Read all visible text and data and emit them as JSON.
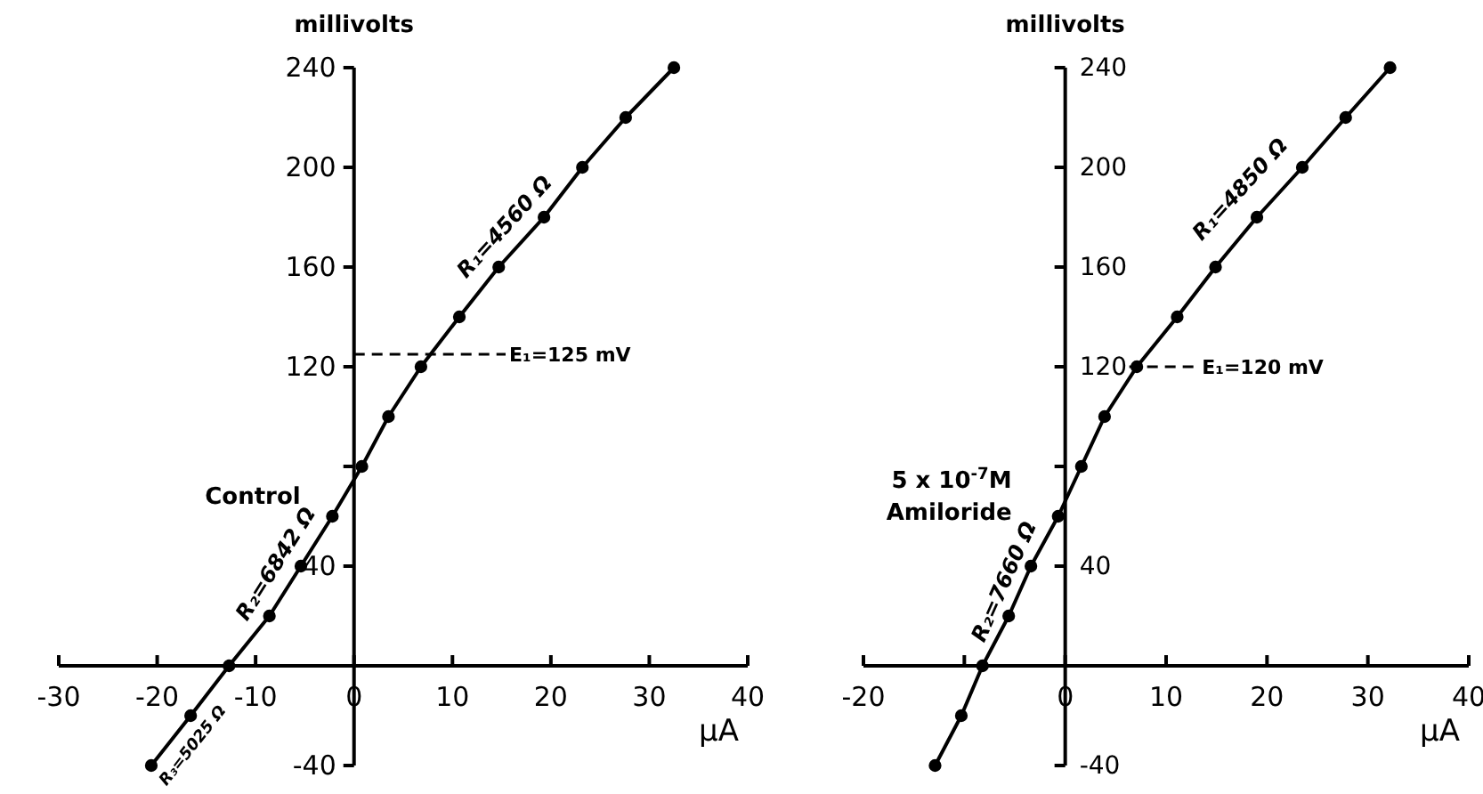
{
  "chart_data": [
    {
      "type": "line",
      "xlabel": "μA",
      "ylabel": "millivolts",
      "xlim": [
        -30,
        40
      ],
      "xticks": [
        -30,
        -20,
        -10,
        0,
        10,
        20,
        30,
        40
      ],
      "ylim": [
        -40,
        240
      ],
      "yticks": [
        -40,
        40,
        {
          "value": 80,
          "label": null
        },
        120,
        160,
        200,
        240
      ],
      "marker": "circle",
      "line_style": "solid",
      "series": [
        {
          "color": "#000000",
          "x": [
            32.5,
            27.6,
            23.2,
            19.3,
            14.7,
            10.7,
            6.8,
            3.5,
            0.8,
            -2.2,
            -5.4,
            -8.6,
            -12.7,
            -16.6,
            -20.6
          ],
          "values": [
            240,
            220,
            200,
            180,
            160,
            140,
            120,
            100,
            80,
            60,
            40,
            20,
            0,
            -20,
            -40
          ]
        }
      ],
      "ref_lines": [
        {
          "axis": "y",
          "value": 125,
          "label": "E₁=125 mV",
          "line_style": "dashed"
        }
      ],
      "annotations": [
        {
          "text": "R₁=4560 Ω",
          "x": 17,
          "y": 170
        },
        {
          "text": "R₂=6842 Ω",
          "x": -6,
          "y": 36
        },
        {
          "text": "R₃=5025 Ω",
          "x": -18,
          "y": -27
        },
        "Control"
      ]
    },
    {
      "type": "line",
      "xlabel": "μA",
      "ylabel": "millivolts",
      "xlim": [
        -20,
        40
      ],
      "xticks": [
        -20,
        {
          "value": -10,
          "label": null
        },
        0,
        10,
        20,
        30,
        40
      ],
      "ylim": [
        -40,
        240
      ],
      "yticks": [
        -40,
        40,
        {
          "value": 80,
          "label": null
        },
        120,
        160,
        200,
        240
      ],
      "marker": "circle",
      "line_style": "solid",
      "series": [
        {
          "color": "#000000",
          "x": [
            32.2,
            27.8,
            23.5,
            19.0,
            14.9,
            11.1,
            7.1,
            3.9,
            1.6,
            -0.7,
            -3.4,
            -5.6,
            -8.2,
            -10.3,
            -12.9
          ],
          "values": [
            240,
            220,
            200,
            180,
            160,
            140,
            120,
            100,
            80,
            60,
            40,
            20,
            0,
            -20,
            -40
          ]
        }
      ],
      "ref_lines": [
        {
          "axis": "y",
          "value": 120,
          "label": "E₁=120 mV",
          "line_style": "dashed"
        }
      ],
      "annotations": [
        {
          "text": "R₁=4850 Ω",
          "x": 19,
          "y": 185
        },
        {
          "text": "R₂=7660 Ω",
          "x": -4,
          "y": 30
        },
        "5 x 10$^{-7}$M\nAmiloride"
      ]
    }
  ]
}
